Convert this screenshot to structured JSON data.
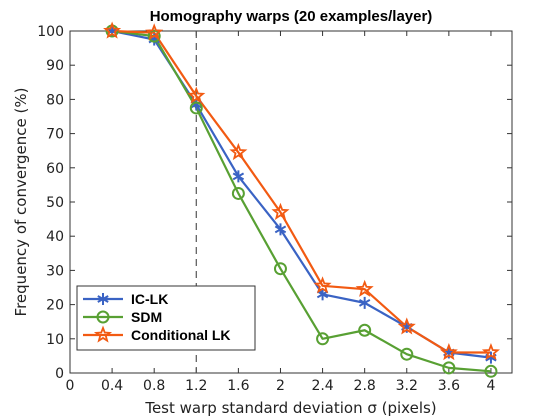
{
  "chart_data": {
    "type": "line",
    "title": "Homography warps (20 examples/layer)",
    "xlabel": "Test warp standard deviation σ (pixels)",
    "ylabel": "Frequency of convergence (%)",
    "xlim": [
      0,
      4.2
    ],
    "ylim": [
      0,
      100
    ],
    "x_ticks": [
      0,
      0.4,
      0.8,
      1.2,
      1.6,
      2,
      2.4,
      2.8,
      3.2,
      3.6,
      4
    ],
    "x_tick_labels": [
      "0",
      "0.4",
      "0.8",
      "1.2",
      "1.6",
      "2",
      "2.4",
      "2.8",
      "3.2",
      "3.6",
      "4"
    ],
    "y_ticks": [
      0,
      10,
      20,
      30,
      40,
      50,
      60,
      70,
      80,
      90,
      100
    ],
    "y_tick_labels": [
      "0",
      "10",
      "20",
      "30",
      "40",
      "50",
      "60",
      "70",
      "80",
      "90",
      "100"
    ],
    "reference_line_x": 1.2,
    "legend_position": "bottom-left",
    "grid": false,
    "x": [
      0.4,
      0.8,
      1.2,
      1.6,
      2.0,
      2.4,
      2.8,
      3.2,
      3.6,
      4.0
    ],
    "series": [
      {
        "name": "IC-LK",
        "color": "#3a63c4",
        "marker": "asterisk",
        "values": [
          100,
          97.5,
          78.5,
          57.5,
          42,
          23,
          20.5,
          13.5,
          6,
          4.5
        ]
      },
      {
        "name": "SDM",
        "color": "#58a033",
        "marker": "circle",
        "values": [
          100,
          98.5,
          77.5,
          52.5,
          30.5,
          10,
          12.5,
          5.5,
          1.5,
          0.5
        ]
      },
      {
        "name": "Conditional LK",
        "color": "#f25a12",
        "marker": "star",
        "values": [
          100,
          99.5,
          81,
          64.5,
          47,
          25.5,
          24.5,
          13.5,
          6,
          6
        ]
      }
    ]
  }
}
